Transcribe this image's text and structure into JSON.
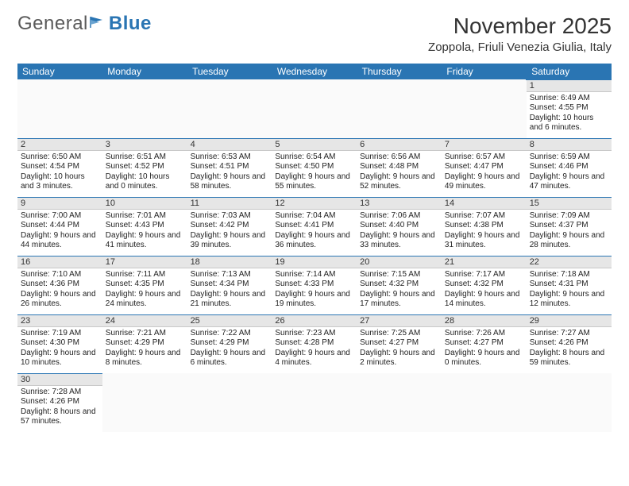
{
  "logo": {
    "text_a": "General",
    "text_b": "Blue"
  },
  "title": "November 2025",
  "location": "Zoppola, Friuli Venezia Giulia, Italy",
  "weekdays": [
    "Sunday",
    "Monday",
    "Tuesday",
    "Wednesday",
    "Thursday",
    "Friday",
    "Saturday"
  ],
  "colors": {
    "header_bg": "#2a75b3",
    "header_text": "#ffffff",
    "daynum_bg": "#e6e6e6",
    "cell_border": "#2a75b3",
    "logo_gray": "#5a5a5a",
    "logo_blue": "#2a75b3"
  },
  "layout": {
    "first_weekday_index": 6,
    "days_in_month": 30,
    "rows": 6,
    "cols": 7
  },
  "days": [
    {
      "n": "1",
      "sunrise": "Sunrise: 6:49 AM",
      "sunset": "Sunset: 4:55 PM",
      "daylight": "Daylight: 10 hours and 6 minutes."
    },
    {
      "n": "2",
      "sunrise": "Sunrise: 6:50 AM",
      "sunset": "Sunset: 4:54 PM",
      "daylight": "Daylight: 10 hours and 3 minutes."
    },
    {
      "n": "3",
      "sunrise": "Sunrise: 6:51 AM",
      "sunset": "Sunset: 4:52 PM",
      "daylight": "Daylight: 10 hours and 0 minutes."
    },
    {
      "n": "4",
      "sunrise": "Sunrise: 6:53 AM",
      "sunset": "Sunset: 4:51 PM",
      "daylight": "Daylight: 9 hours and 58 minutes."
    },
    {
      "n": "5",
      "sunrise": "Sunrise: 6:54 AM",
      "sunset": "Sunset: 4:50 PM",
      "daylight": "Daylight: 9 hours and 55 minutes."
    },
    {
      "n": "6",
      "sunrise": "Sunrise: 6:56 AM",
      "sunset": "Sunset: 4:48 PM",
      "daylight": "Daylight: 9 hours and 52 minutes."
    },
    {
      "n": "7",
      "sunrise": "Sunrise: 6:57 AM",
      "sunset": "Sunset: 4:47 PM",
      "daylight": "Daylight: 9 hours and 49 minutes."
    },
    {
      "n": "8",
      "sunrise": "Sunrise: 6:59 AM",
      "sunset": "Sunset: 4:46 PM",
      "daylight": "Daylight: 9 hours and 47 minutes."
    },
    {
      "n": "9",
      "sunrise": "Sunrise: 7:00 AM",
      "sunset": "Sunset: 4:44 PM",
      "daylight": "Daylight: 9 hours and 44 minutes."
    },
    {
      "n": "10",
      "sunrise": "Sunrise: 7:01 AM",
      "sunset": "Sunset: 4:43 PM",
      "daylight": "Daylight: 9 hours and 41 minutes."
    },
    {
      "n": "11",
      "sunrise": "Sunrise: 7:03 AM",
      "sunset": "Sunset: 4:42 PM",
      "daylight": "Daylight: 9 hours and 39 minutes."
    },
    {
      "n": "12",
      "sunrise": "Sunrise: 7:04 AM",
      "sunset": "Sunset: 4:41 PM",
      "daylight": "Daylight: 9 hours and 36 minutes."
    },
    {
      "n": "13",
      "sunrise": "Sunrise: 7:06 AM",
      "sunset": "Sunset: 4:40 PM",
      "daylight": "Daylight: 9 hours and 33 minutes."
    },
    {
      "n": "14",
      "sunrise": "Sunrise: 7:07 AM",
      "sunset": "Sunset: 4:38 PM",
      "daylight": "Daylight: 9 hours and 31 minutes."
    },
    {
      "n": "15",
      "sunrise": "Sunrise: 7:09 AM",
      "sunset": "Sunset: 4:37 PM",
      "daylight": "Daylight: 9 hours and 28 minutes."
    },
    {
      "n": "16",
      "sunrise": "Sunrise: 7:10 AM",
      "sunset": "Sunset: 4:36 PM",
      "daylight": "Daylight: 9 hours and 26 minutes."
    },
    {
      "n": "17",
      "sunrise": "Sunrise: 7:11 AM",
      "sunset": "Sunset: 4:35 PM",
      "daylight": "Daylight: 9 hours and 24 minutes."
    },
    {
      "n": "18",
      "sunrise": "Sunrise: 7:13 AM",
      "sunset": "Sunset: 4:34 PM",
      "daylight": "Daylight: 9 hours and 21 minutes."
    },
    {
      "n": "19",
      "sunrise": "Sunrise: 7:14 AM",
      "sunset": "Sunset: 4:33 PM",
      "daylight": "Daylight: 9 hours and 19 minutes."
    },
    {
      "n": "20",
      "sunrise": "Sunrise: 7:15 AM",
      "sunset": "Sunset: 4:32 PM",
      "daylight": "Daylight: 9 hours and 17 minutes."
    },
    {
      "n": "21",
      "sunrise": "Sunrise: 7:17 AM",
      "sunset": "Sunset: 4:32 PM",
      "daylight": "Daylight: 9 hours and 14 minutes."
    },
    {
      "n": "22",
      "sunrise": "Sunrise: 7:18 AM",
      "sunset": "Sunset: 4:31 PM",
      "daylight": "Daylight: 9 hours and 12 minutes."
    },
    {
      "n": "23",
      "sunrise": "Sunrise: 7:19 AM",
      "sunset": "Sunset: 4:30 PM",
      "daylight": "Daylight: 9 hours and 10 minutes."
    },
    {
      "n": "24",
      "sunrise": "Sunrise: 7:21 AM",
      "sunset": "Sunset: 4:29 PM",
      "daylight": "Daylight: 9 hours and 8 minutes."
    },
    {
      "n": "25",
      "sunrise": "Sunrise: 7:22 AM",
      "sunset": "Sunset: 4:29 PM",
      "daylight": "Daylight: 9 hours and 6 minutes."
    },
    {
      "n": "26",
      "sunrise": "Sunrise: 7:23 AM",
      "sunset": "Sunset: 4:28 PM",
      "daylight": "Daylight: 9 hours and 4 minutes."
    },
    {
      "n": "27",
      "sunrise": "Sunrise: 7:25 AM",
      "sunset": "Sunset: 4:27 PM",
      "daylight": "Daylight: 9 hours and 2 minutes."
    },
    {
      "n": "28",
      "sunrise": "Sunrise: 7:26 AM",
      "sunset": "Sunset: 4:27 PM",
      "daylight": "Daylight: 9 hours and 0 minutes."
    },
    {
      "n": "29",
      "sunrise": "Sunrise: 7:27 AM",
      "sunset": "Sunset: 4:26 PM",
      "daylight": "Daylight: 8 hours and 59 minutes."
    },
    {
      "n": "30",
      "sunrise": "Sunrise: 7:28 AM",
      "sunset": "Sunset: 4:26 PM",
      "daylight": "Daylight: 8 hours and 57 minutes."
    }
  ]
}
